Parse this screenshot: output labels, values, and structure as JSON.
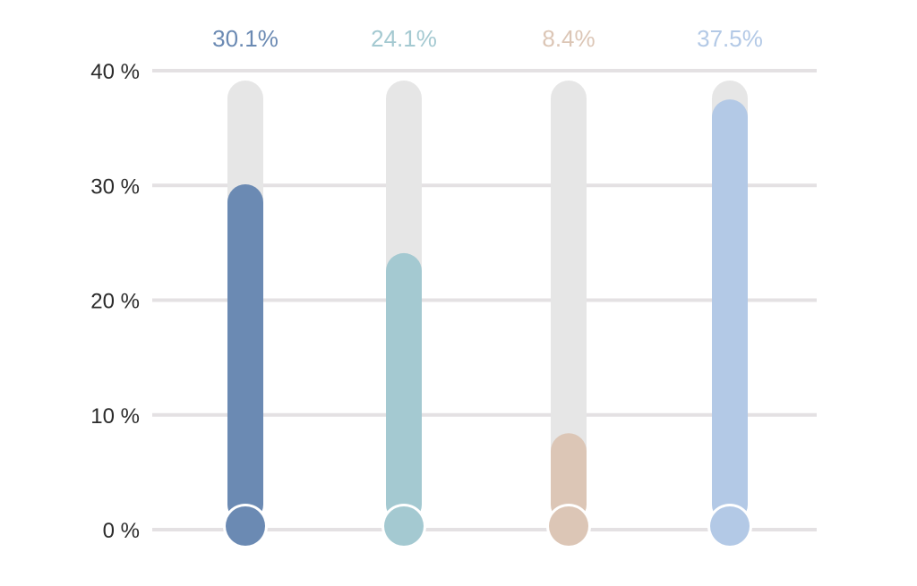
{
  "chart_data": {
    "type": "bar",
    "title": "",
    "xlabel": "",
    "ylabel": "",
    "ylim": [
      0,
      40
    ],
    "grid": true,
    "y_ticks": [
      {
        "value": 0,
        "label": "0 %"
      },
      {
        "value": 10,
        "label": "10 %"
      },
      {
        "value": 20,
        "label": "20 %"
      },
      {
        "value": 30,
        "label": "30 %"
      },
      {
        "value": 40,
        "label": "40 %"
      }
    ],
    "values": [
      30.1,
      24.1,
      8.4,
      37.5
    ],
    "value_labels": [
      "30.1%",
      "24.1%",
      "8.4%",
      "37.5%"
    ],
    "colors": [
      "#6b8ab3",
      "#a4c9d1",
      "#dcc6b6",
      "#b3c9e6"
    ],
    "track_color": "#e6e6e6",
    "grid_color": "#e4e1e3"
  }
}
